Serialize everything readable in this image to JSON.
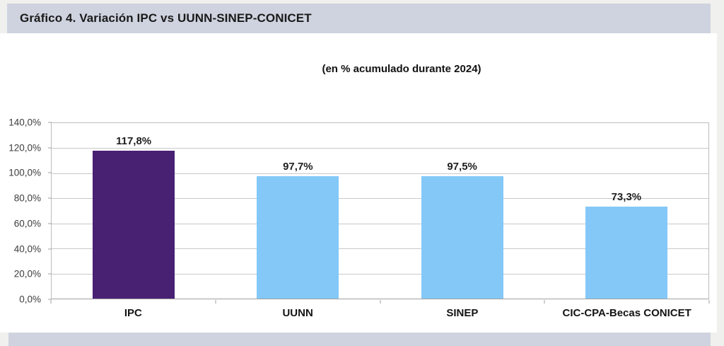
{
  "header": {
    "title": "Gráfico 4. Variación IPC vs UUNN-SINEP-CONICET"
  },
  "chart_data": {
    "type": "bar",
    "title": "(en % acumulado durante 2024)",
    "xlabel": "",
    "ylabel": "",
    "categories": [
      "IPC",
      "UUNN",
      "SINEP",
      "CIC-CPA-Becas CONICET"
    ],
    "values": [
      117.8,
      97.7,
      97.5,
      73.3
    ],
    "value_labels": [
      "117,8%",
      "97,7%",
      "97,5%",
      "73,3%"
    ],
    "ylim": [
      0,
      140
    ],
    "ytick_step": 20,
    "ytick_labels": [
      "140,0%",
      "120,0%",
      "100,0%",
      "80,0%",
      "60,0%",
      "40,0%",
      "20,0%",
      "0,0%"
    ],
    "grid": true,
    "legend_position": "none",
    "bar_colors": [
      "#482173",
      "#84C8F8",
      "#84C8F8",
      "#84C8F8"
    ]
  },
  "colors": {
    "band": "#CFD3DF",
    "page_margin": "#F0F0EE",
    "gridline": "#C9C9C9",
    "bar_purple": "#482173",
    "bar_blue": "#84C8F8"
  }
}
